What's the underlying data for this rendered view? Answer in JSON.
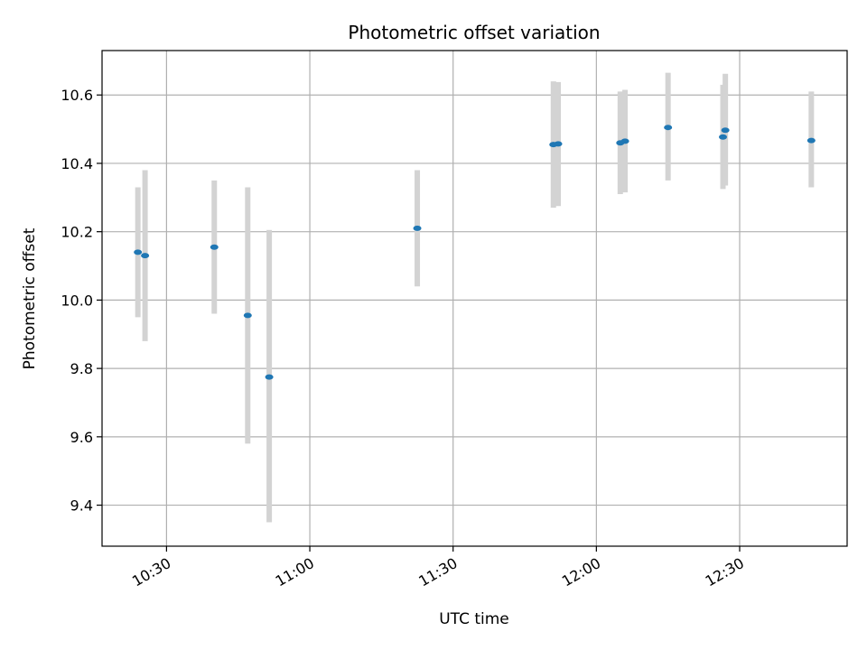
{
  "chart_data": {
    "type": "scatter",
    "title": "Photometric offset variation",
    "xlabel": "UTC time",
    "ylabel": "Photometric offset",
    "x_ticks": [
      "10:30",
      "11:00",
      "11:30",
      "12:00",
      "12:30"
    ],
    "y_ticks": [
      "9.4",
      "9.6",
      "9.8",
      "10.0",
      "10.2",
      "10.4",
      "10.6"
    ],
    "xlim": [
      "10:16:30",
      "12:52:30"
    ],
    "ylim": [
      9.28,
      10.73
    ],
    "grid": true,
    "colors": {
      "point": "#1f77b4",
      "errorbar": "#d3d3d3",
      "grid": "#b0b0b0"
    },
    "series": [
      {
        "points": [
          {
            "x": "10:24:00",
            "y": 10.14,
            "yerr_low": 9.95,
            "yerr_high": 10.33
          },
          {
            "x": "10:25:30",
            "y": 10.13,
            "yerr_low": 9.88,
            "yerr_high": 10.38
          },
          {
            "x": "10:40:00",
            "y": 10.155,
            "yerr_low": 9.96,
            "yerr_high": 10.35
          },
          {
            "x": "10:47:00",
            "y": 9.955,
            "yerr_low": 9.58,
            "yerr_high": 10.33
          },
          {
            "x": "10:51:30",
            "y": 9.775,
            "yerr_low": 9.35,
            "yerr_high": 10.205
          },
          {
            "x": "11:22:30",
            "y": 10.21,
            "yerr_low": 10.04,
            "yerr_high": 10.38
          },
          {
            "x": "11:51:00",
            "y": 10.455,
            "yerr_low": 10.27,
            "yerr_high": 10.64
          },
          {
            "x": "11:52:00",
            "y": 10.457,
            "yerr_low": 10.275,
            "yerr_high": 10.638
          },
          {
            "x": "12:05:00",
            "y": 10.46,
            "yerr_low": 10.31,
            "yerr_high": 10.61
          },
          {
            "x": "12:06:00",
            "y": 10.465,
            "yerr_low": 10.315,
            "yerr_high": 10.615
          },
          {
            "x": "12:15:00",
            "y": 10.505,
            "yerr_low": 10.35,
            "yerr_high": 10.665
          },
          {
            "x": "12:26:30",
            "y": 10.477,
            "yerr_low": 10.325,
            "yerr_high": 10.63
          },
          {
            "x": "12:27:00",
            "y": 10.497,
            "yerr_low": 10.335,
            "yerr_high": 10.662
          },
          {
            "x": "12:45:00",
            "y": 10.467,
            "yerr_low": 10.33,
            "yerr_high": 10.61
          }
        ]
      }
    ]
  }
}
